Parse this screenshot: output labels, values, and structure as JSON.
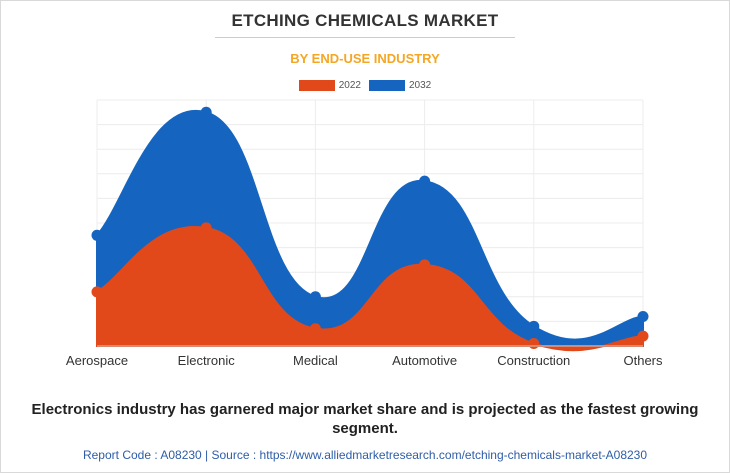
{
  "title": "ETCHING CHEMICALS MARKET",
  "subtitle": "BY END-USE INDUSTRY",
  "legend": [
    {
      "label": "2022",
      "color": "#e2491a"
    },
    {
      "label": "2032",
      "color": "#1565c0"
    }
  ],
  "chart_data": {
    "type": "area",
    "curve": "smooth",
    "stacked": false,
    "grid": true,
    "legend_position": "top-center",
    "categories": [
      "Aerospace",
      "Electronic",
      "Medical",
      "Automotive",
      "Construction",
      "Others"
    ],
    "series": [
      {
        "name": "2032",
        "color": "#1565c0",
        "values": [
          45,
          95,
          20,
          67,
          8,
          12
        ]
      },
      {
        "name": "2022",
        "color": "#e2491a",
        "values": [
          22,
          48,
          7,
          33,
          1,
          4
        ]
      }
    ]
  },
  "footer": {
    "statement": "Electronics industry has garnered major market share and is projected as the fastest growing segment.",
    "report": "Report Code : A08230  |  Source : https://www.alliedmarketresearch.com/etching-chemicals-market-A08230"
  }
}
